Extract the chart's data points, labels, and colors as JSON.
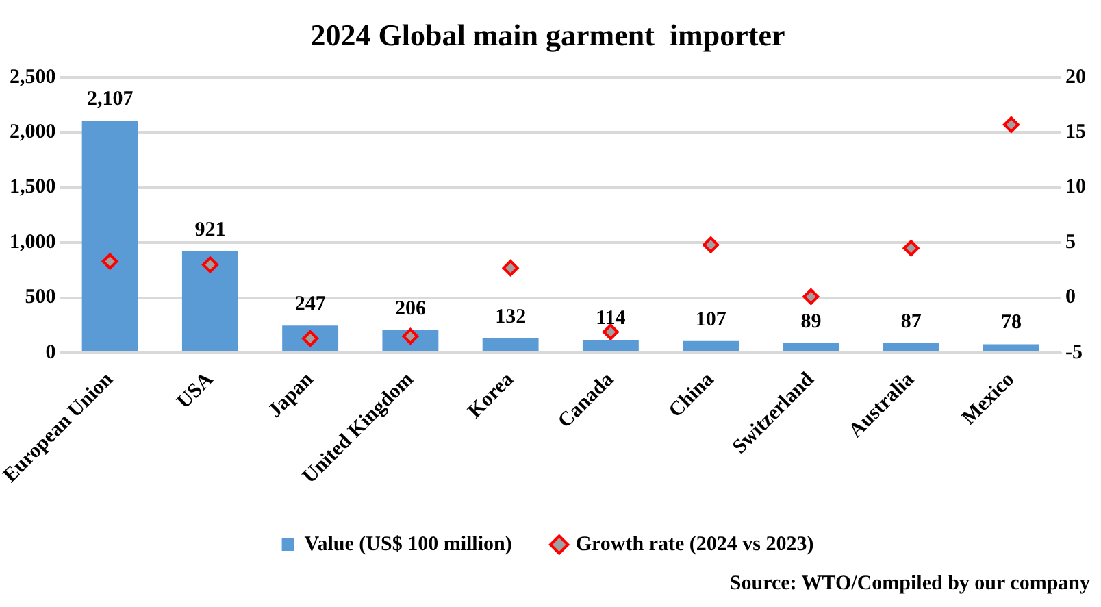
{
  "chart_data": {
    "type": "bar",
    "title": "2024 Global main garment  importer",
    "categories": [
      "European Union",
      "USA",
      "Japan",
      "United Kingdom",
      "Korea",
      "Canada",
      "China",
      "Switzerland",
      "Australia",
      "Mexico"
    ],
    "series": [
      {
        "name": "Value (US$ 100 million)",
        "color": "#5b9bd5",
        "values": [
          2107,
          921,
          247,
          206,
          132,
          114,
          107,
          89,
          87,
          78
        ]
      },
      {
        "name": "Growth rate (2024 vs 2023)",
        "type": "scatter",
        "axis": "y2",
        "color": "#ff0000",
        "x": [
          "European Union",
          "USA",
          "Japan",
          "United Kingdom",
          "Korea",
          "Canada",
          "China",
          "Switzerland",
          "Australia",
          "Mexico"
        ],
        "values": [
          3.3,
          3.0,
          -3.7,
          -3.5,
          2.7,
          -3.1,
          4.8,
          0.1,
          4.5,
          15.7
        ]
      }
    ],
    "ylim": [
      0,
      2500
    ],
    "yticks": [
      {
        "value": 0,
        "label": "0"
      },
      {
        "value": 500,
        "label": "500"
      },
      {
        "value": 1000,
        "label": "1,000"
      },
      {
        "value": 1500,
        "label": "1,500"
      },
      {
        "value": 2000,
        "label": "2,000"
      },
      {
        "value": 2500,
        "label": "2,500"
      }
    ],
    "y2lim": [
      -5,
      20
    ],
    "y2ticks": [
      -5,
      0,
      5,
      10,
      15,
      20
    ],
    "value_labels": [
      "2,107",
      "921",
      "247",
      "206",
      "132",
      "114",
      "107",
      "89",
      "87",
      "78"
    ],
    "marker": "diamond",
    "grid": "y",
    "legend": "bottom",
    "annotations": [
      "Source: WTO/Compiled by our company"
    ]
  }
}
